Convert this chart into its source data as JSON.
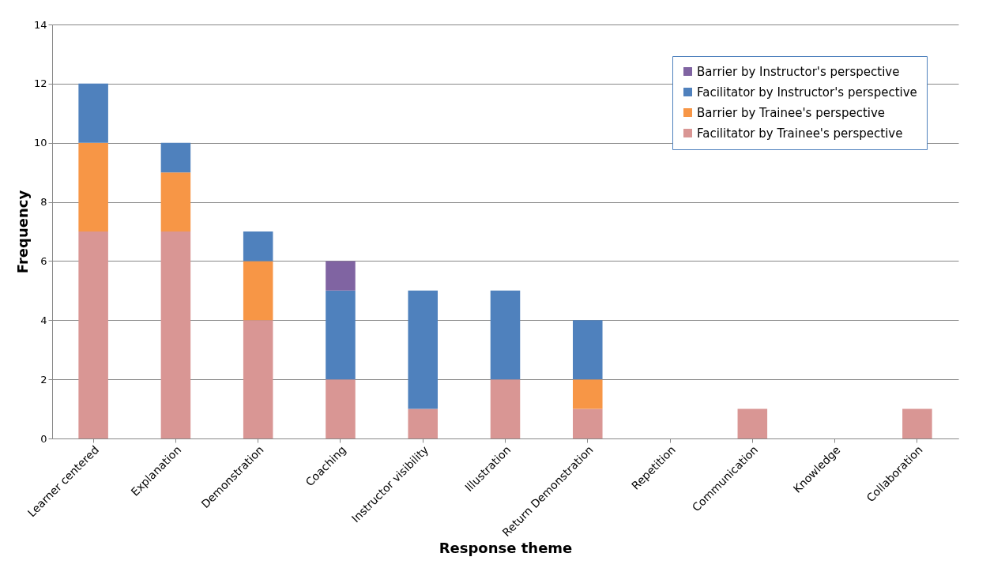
{
  "chart_data": {
    "type": "bar",
    "stacked": true,
    "xlabel": "Response theme",
    "ylabel": "Frequency",
    "categories": [
      "Learner centered",
      "Explanation",
      "Demonstration",
      "Coaching",
      "Instructor visibility",
      "Illustration",
      "Return Demonstration",
      "Repetition",
      "Communication",
      "Knowledge",
      "Collaboration"
    ],
    "series": [
      {
        "name": "Facilitator by Trainee's perspective",
        "color": "#d99694",
        "values": [
          7,
          7,
          4,
          2,
          1,
          2,
          1,
          0,
          1,
          0,
          1
        ]
      },
      {
        "name": "Barrier by Trainee's perspective",
        "color": "#f79646",
        "values": [
          3,
          2,
          2,
          0,
          0,
          0,
          1,
          0,
          0,
          0,
          0
        ]
      },
      {
        "name": "Facilitator by Instructor's perspective",
        "color": "#4f81bd",
        "values": [
          2,
          1,
          1,
          3,
          4,
          3,
          2,
          0,
          0,
          0,
          0
        ]
      },
      {
        "name": "Barrier by Instructor's perspective",
        "color": "#8064a2",
        "values": [
          0,
          0,
          0,
          1,
          0,
          0,
          0,
          0,
          0,
          0,
          0
        ]
      }
    ],
    "ylim": [
      0,
      14
    ],
    "yticks": [
      0,
      2,
      4,
      6,
      8,
      10,
      12,
      14
    ],
    "grid": "y",
    "legend": "top right"
  }
}
